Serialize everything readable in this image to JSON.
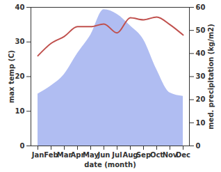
{
  "chart_data": {
    "type": "line",
    "xlabel": "date (month)",
    "categories": [
      "Jan",
      "Feb",
      "Mar",
      "Apr",
      "May",
      "Jun",
      "Jul",
      "Aug",
      "Sep",
      "Oct",
      "Nov",
      "Dec"
    ],
    "series": [
      {
        "name": "med. precipitation (kg/m2)",
        "type": "area",
        "axis": "y2",
        "color": "#b0bdf2",
        "values": [
          22.5,
          26,
          31,
          40,
          48,
          59,
          57,
          52,
          46,
          33,
          23,
          21.5
        ]
      },
      {
        "name": "max temp (C)",
        "type": "line",
        "axis": "y",
        "color": "#c0504d",
        "values": [
          26,
          29.6,
          31.6,
          34.4,
          34.4,
          35.2,
          32.6,
          37,
          36.4,
          37.2,
          35,
          32
        ]
      }
    ],
    "ylim": [
      0,
      40
    ],
    "yticks": [
      0,
      10,
      20,
      30,
      40
    ],
    "y2lim": [
      0,
      60
    ],
    "y2ticks": [
      0,
      10,
      20,
      30,
      40,
      50,
      60
    ],
    "grid": false
  }
}
